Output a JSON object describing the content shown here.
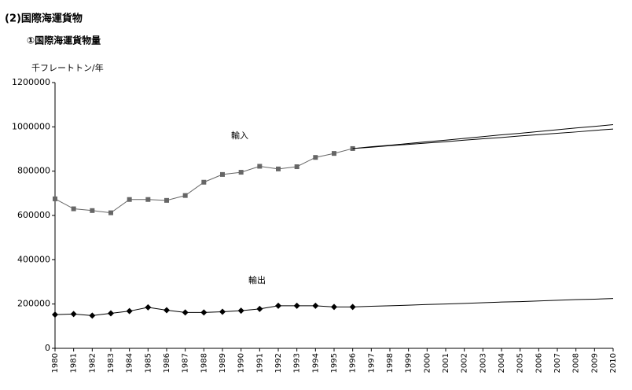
{
  "chart_data": {
    "type": "line",
    "title": "(2)国際海運貨物",
    "subtitle": "①国際海運貨物量",
    "y_label": "千フレートトン/年",
    "categories": [
      "1980",
      "1981",
      "1982",
      "1983",
      "1984",
      "1985",
      "1986",
      "1987",
      "1988",
      "1989",
      "1990",
      "1991",
      "1992",
      "1993",
      "1994",
      "1995",
      "1996",
      "1997",
      "1998",
      "1999",
      "2000",
      "2001",
      "2002",
      "2003",
      "2004",
      "2005",
      "2006",
      "2007",
      "2008",
      "2009",
      "2010"
    ],
    "series": [
      {
        "name": "輸入",
        "color": "#666666",
        "marker": "square",
        "values": [
          675000,
          630000,
          622000,
          612000,
          672000,
          672000,
          668000,
          690000,
          750000,
          785000,
          795000,
          822000,
          810000,
          820000,
          862000,
          880000,
          902000,
          null,
          null,
          null,
          null,
          null,
          null,
          null,
          null,
          null,
          null,
          null,
          null,
          null,
          null
        ]
      },
      {
        "name": "輸出",
        "color": "#000000",
        "marker": "diamond",
        "values": [
          152000,
          155000,
          148000,
          158000,
          168000,
          185000,
          172000,
          162000,
          162000,
          165000,
          170000,
          178000,
          192000,
          192000,
          192000,
          187000,
          187000,
          null,
          null,
          null,
          null,
          null,
          null,
          null,
          null,
          null,
          null,
          null,
          null,
          null,
          null
        ]
      },
      {
        "color": "#000000",
        "values": [
          null,
          null,
          null,
          null,
          null,
          null,
          null,
          null,
          null,
          null,
          null,
          null,
          null,
          null,
          null,
          null,
          902000,
          910000,
          917000,
          925000,
          933000,
          940000,
          948000,
          956000,
          964000,
          971000,
          979000,
          987000,
          995000,
          1002000,
          1010000
        ]
      },
      {
        "color": "#000000",
        "values": [
          null,
          null,
          null,
          null,
          null,
          null,
          null,
          null,
          null,
          null,
          null,
          null,
          null,
          null,
          null,
          null,
          902000,
          908000,
          915000,
          921000,
          927000,
          933000,
          940000,
          946000,
          952000,
          959000,
          965000,
          971000,
          977000,
          984000,
          990000
        ]
      },
      {
        "color": "#000000",
        "values": [
          null,
          null,
          null,
          null,
          null,
          null,
          null,
          null,
          null,
          null,
          null,
          null,
          null,
          null,
          null,
          null,
          187000,
          190000,
          192000,
          195000,
          198000,
          200000,
          203000,
          206000,
          209000,
          211000,
          214000,
          217000,
          220000,
          222000,
          225000
        ]
      }
    ],
    "ylim": [
      0,
      1200000
    ],
    "yticks": [
      0,
      200000,
      400000,
      600000,
      800000,
      1000000,
      1200000
    ],
    "grid": false
  }
}
